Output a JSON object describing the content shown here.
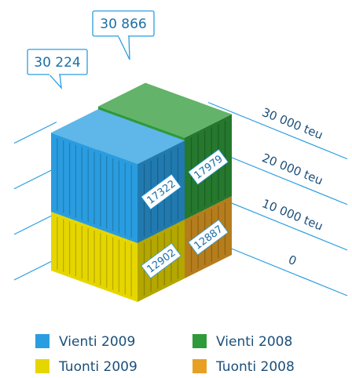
{
  "chart_data": {
    "type": "stacked-3d-bar",
    "stacks": [
      {
        "total": {
          "value": 30224,
          "label": "30 224"
        },
        "series": [
          {
            "name": "Tuonti 2009",
            "color": "#e6d600",
            "values": [
              12902
            ]
          },
          {
            "name": "Vienti 2009",
            "color": "#2a9de0",
            "values": [
              17322
            ]
          }
        ]
      },
      {
        "total": {
          "value": 30866,
          "label": "30 866"
        },
        "series": [
          {
            "name": "Tuonti 2008",
            "color": "#e8a024",
            "values": [
              12887
            ]
          },
          {
            "name": "Vienti 2008",
            "color": "#2f9a3a",
            "values": [
              17979
            ]
          }
        ]
      }
    ],
    "ylim": [
      0,
      32000
    ],
    "yticks": [
      0,
      {
        "value": 10000,
        "label": "10 000 teu"
      },
      {
        "value": 20000,
        "label": "20 000 teu"
      },
      {
        "value": 30000,
        "label": "30 000 teu"
      }
    ]
  }
}
